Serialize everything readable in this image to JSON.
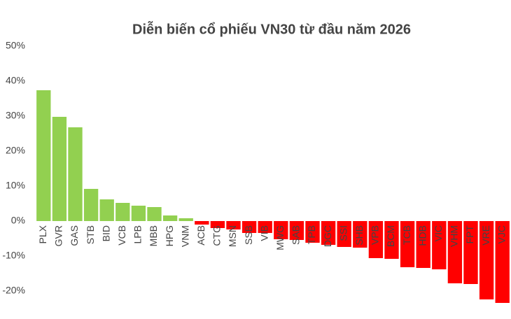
{
  "chart_data": {
    "type": "bar",
    "title": "Diễn biến cổ phiếu VN30 từ đầu năm 2026",
    "categories": [
      "PLX",
      "GVR",
      "GAS",
      "STB",
      "BID",
      "VCB",
      "LPB",
      "MBB",
      "HPG",
      "VNM",
      "ACB",
      "CTG",
      "MSN",
      "SSB",
      "VIB",
      "MWG",
      "SAB",
      "TPB",
      "DGC",
      "SSI",
      "SHB",
      "VPB",
      "BCM",
      "TCB",
      "HDB",
      "VIC",
      "VHM",
      "FPT",
      "VRE",
      "VJC"
    ],
    "values": [
      37.4,
      29.8,
      26.8,
      9.2,
      6.2,
      5.2,
      4.4,
      4.0,
      1.6,
      0.8,
      -1.0,
      -2.0,
      -2.4,
      -3.4,
      -3.4,
      -5.2,
      -5.4,
      -6.2,
      -6.8,
      -7.4,
      -7.6,
      -10.6,
      -10.8,
      -13.2,
      -13.4,
      -13.8,
      -17.8,
      -18.0,
      -22.4,
      -23.4
    ],
    "positive_color": "#92d050",
    "negative_color": "#ff0000",
    "ylim": [
      -25,
      50
    ],
    "yticks": [
      {
        "value": 50,
        "label": "50%"
      },
      {
        "value": 40,
        "label": "40%"
      },
      {
        "value": 30,
        "label": "30%"
      },
      {
        "value": 20,
        "label": "20%"
      },
      {
        "value": 10,
        "label": "10%"
      },
      {
        "value": 0,
        "label": "0%"
      },
      {
        "value": -10,
        "label": "-10%"
      },
      {
        "value": -20,
        "label": "-20%"
      }
    ],
    "grid": false
  }
}
